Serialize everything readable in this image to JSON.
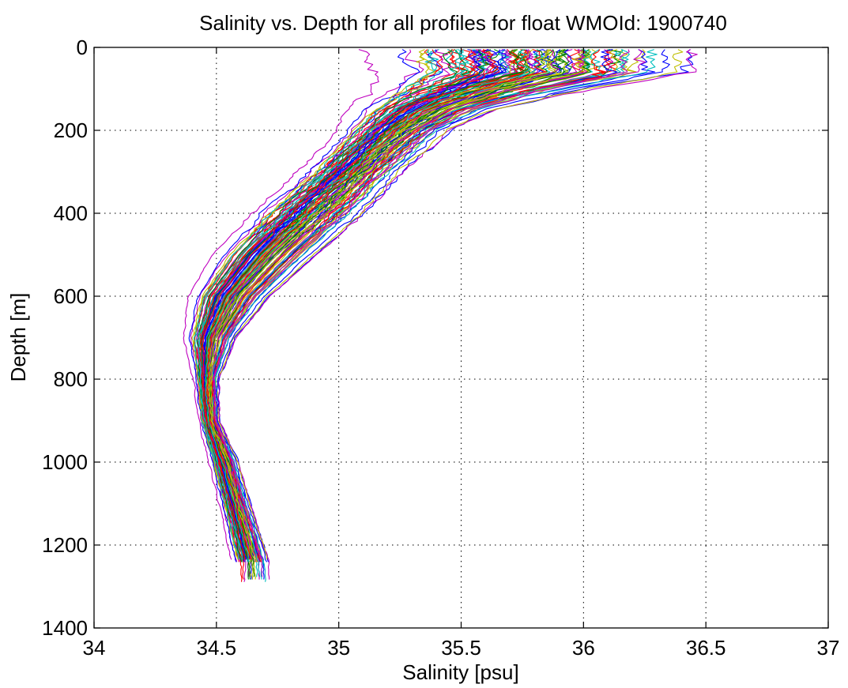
{
  "chart_data": {
    "type": "line",
    "title": "Salinity vs. Depth for all profiles for float WMOId: 1900740",
    "xlabel": "Salinity [psu]",
    "ylabel": "Depth [m]",
    "xlim": [
      34,
      37
    ],
    "ylim": [
      0,
      1400
    ],
    "y_reversed": true,
    "grid": true,
    "legend": "none",
    "x_ticks": [
      "34",
      "34.5",
      "35",
      "35.5",
      "36",
      "36.5",
      "37"
    ],
    "y_ticks": [
      "0",
      "200",
      "400",
      "600",
      "800",
      "1000",
      "1200",
      "1400"
    ],
    "color_cycle": [
      "#0000ff",
      "#008000",
      "#ff0000",
      "#00bfbf",
      "#bf00bf",
      "#bfbf00"
    ],
    "profile_count": 120,
    "envelope": {
      "depth": [
        5,
        30,
        60,
        100,
        150,
        200,
        300,
        400,
        500,
        600,
        700,
        800,
        900,
        1000,
        1100,
        1240
      ],
      "salinity_min": [
        35.0,
        35.0,
        35.05,
        35.05,
        35.0,
        34.95,
        34.8,
        34.6,
        34.45,
        34.36,
        34.35,
        34.4,
        34.42,
        34.46,
        34.5,
        34.55
      ],
      "salinity_max": [
        36.58,
        36.58,
        36.55,
        36.1,
        35.7,
        35.5,
        35.3,
        35.15,
        34.95,
        34.75,
        34.6,
        34.52,
        34.52,
        34.6,
        34.65,
        34.73
      ],
      "salinity_median": [
        35.7,
        35.7,
        35.5,
        35.4,
        35.25,
        35.12,
        34.95,
        34.78,
        34.63,
        34.5,
        34.45,
        34.45,
        34.47,
        34.52,
        34.57,
        34.63
      ]
    }
  }
}
